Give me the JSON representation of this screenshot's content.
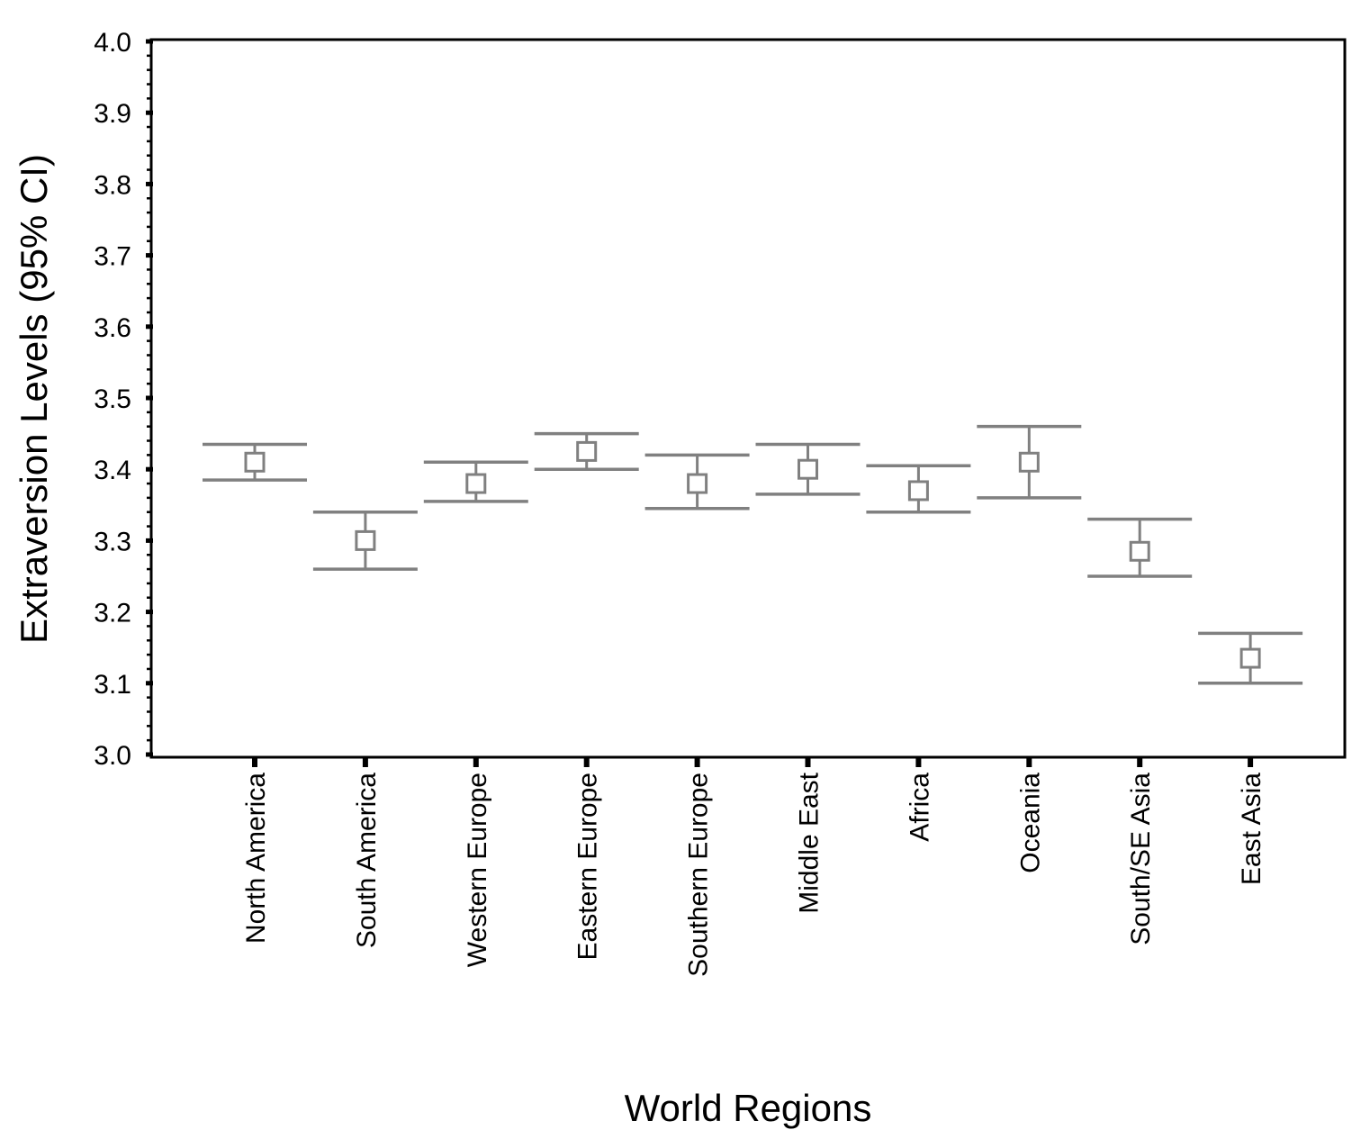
{
  "chart_data": {
    "type": "errorbar",
    "xlabel": "World Regions",
    "ylabel": "Extraversion Levels (95% CI)",
    "ylim": [
      3.0,
      4.0
    ],
    "yticks": [
      "3.0",
      "3.1",
      "3.2",
      "3.3",
      "3.4",
      "3.5",
      "3.6",
      "3.7",
      "3.8",
      "3.9",
      "4.0"
    ],
    "categories": [
      "North America",
      "South America",
      "Western Europe",
      "Eastern Europe",
      "Southern Europe",
      "Middle East",
      "Africa",
      "Oceania",
      "South/SE Asia",
      "East Asia"
    ],
    "series": [
      {
        "mean": [
          3.41,
          3.3,
          3.38,
          3.425,
          3.38,
          3.4,
          3.37,
          3.41,
          3.285,
          3.135
        ],
        "lower": [
          3.385,
          3.26,
          3.355,
          3.4,
          3.345,
          3.365,
          3.34,
          3.36,
          3.25,
          3.1
        ],
        "upper": [
          3.435,
          3.34,
          3.41,
          3.45,
          3.42,
          3.435,
          3.405,
          3.46,
          3.33,
          3.17
        ]
      }
    ],
    "grid": false,
    "colors": {
      "marker": "#808080",
      "axis": "#000000"
    }
  }
}
